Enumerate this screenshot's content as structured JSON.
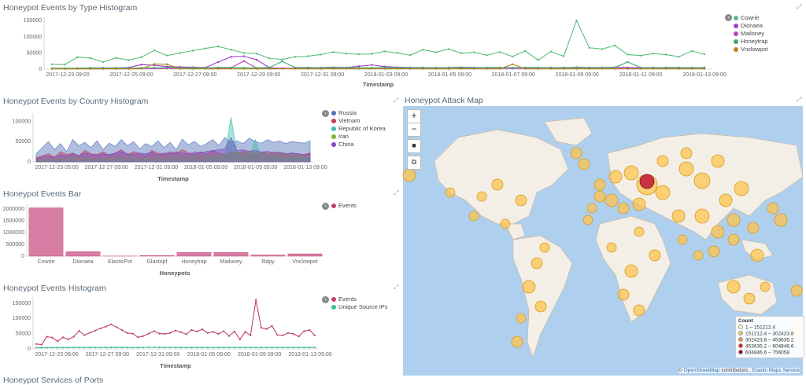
{
  "type_panel": {
    "title": "Honeypot Events by Type Histogram",
    "xlabel": "Timestamp",
    "x_ticks": [
      "2017-12-23 09:00",
      "2017-12-25 09:00",
      "2017-12-27 09:00",
      "2017-12-29 09:00",
      "2017-12-31 09:00",
      "2018-01-03 09:00",
      "2018-01-05 09:00",
      "2018-01-07 09:00",
      "2018-01-09 09:00",
      "2018-01-11 09:00",
      "2018-01-13 09:00"
    ],
    "y_ticks": [
      "150000",
      "100000",
      "50000",
      "0"
    ],
    "legend": [
      {
        "label": "Cowrie",
        "color": "#57c17b"
      },
      {
        "label": "Dionaea",
        "color": "#9c41c8"
      },
      {
        "label": "Mailoney",
        "color": "#c23fb4"
      },
      {
        "label": "Honeytrap",
        "color": "#3aab6b"
      },
      {
        "label": "Vnclowpot",
        "color": "#b5871e"
      }
    ]
  },
  "country_panel": {
    "title": "Honeypot Events by Country Histogram",
    "xlabel": "Timestamp",
    "x_ticks": [
      "2017-12-23 09:00",
      "2017-12-27 09:00",
      "2017-12-31 09:00",
      "2018-01-05 09:00",
      "2018-01-09 09:00",
      "2018-01-13 09:00"
    ],
    "y_ticks": [
      "100000",
      "50000",
      "0"
    ],
    "legend": [
      {
        "label": "Russia",
        "color": "#4d6fb8"
      },
      {
        "label": "Vietnam",
        "color": "#c0404f"
      },
      {
        "label": "Republic of Korea",
        "color": "#3dbfa8"
      },
      {
        "label": "Iran",
        "color": "#7fb538"
      },
      {
        "label": "China",
        "color": "#7b49c2"
      }
    ]
  },
  "bar_panel": {
    "title": "Honeypot Events Bar",
    "xlabel": "Honeypots",
    "y_ticks": [
      "2000000",
      "1500000",
      "1000000",
      "500000",
      "0"
    ],
    "legend": [
      {
        "label": "Events",
        "color": "#c2406f"
      }
    ]
  },
  "events_panel": {
    "title": "Honeypot Events Histogram",
    "xlabel": "Timestamp",
    "x_ticks": [
      "2017-12-23 09:00",
      "2017-12-27 09:00",
      "2017-12-31 09:00",
      "2018-01-05 09:00",
      "2018-01-09 09:00",
      "2018-01-13 09:00"
    ],
    "y_ticks": [
      "150000",
      "100000",
      "50000",
      "0"
    ],
    "legend": [
      {
        "label": "Events",
        "color": "#c2406f"
      },
      {
        "label": "Unique Source IPs",
        "color": "#3dbf95"
      }
    ]
  },
  "next_panel": {
    "title": "Honeypot Services of Ports"
  },
  "map_panel": {
    "title": "Honeypot Attack Map",
    "controls": {
      "zoom_in": "+",
      "zoom_out": "−",
      "draw": "■",
      "fit": "⧉"
    },
    "legend_title": "Count",
    "legend": [
      {
        "label": "1 – 151212.4",
        "color": "#ffffcc"
      },
      {
        "label": "151212.4 – 302423.8",
        "color": "#fec44f"
      },
      {
        "label": "302423.8 – 453635.2",
        "color": "#fd8d3c"
      },
      {
        "label": "453635.2 – 604846.6",
        "color": "#e31a1c"
      },
      {
        "label": "604846.6 – 756058",
        "color": "#99000d"
      }
    ],
    "attribution_prefix": "©",
    "attribution_osm": "OpenStreetMap",
    "attribution_mid": "contributors ,",
    "attribution_service": "Elastic Maps Service"
  },
  "chart_data": [
    {
      "type": "line",
      "title": "Honeypot Events by Type Histogram",
      "xlabel": "Timestamp",
      "ylim": [
        0,
        160000
      ],
      "series": [
        {
          "name": "Cowrie",
          "values": [
            15000,
            14000,
            37000,
            34000,
            22000,
            35000,
            28000,
            37000,
            58000,
            42000,
            50000,
            57000,
            64000,
            70000,
            60000,
            50000,
            48000,
            33000,
            30000,
            38000,
            40000,
            45000,
            53000,
            48000,
            46000,
            47000,
            55000,
            50000,
            43000,
            60000,
            52000,
            62000,
            49000,
            52000,
            43000,
            53000,
            39000,
            56000,
            28000,
            54000,
            40000,
            150000,
            66000,
            62000,
            73000,
            45000,
            42000,
            48000,
            45000,
            38000,
            56000,
            46000
          ]
        },
        {
          "name": "Dionaea",
          "values": [
            2000,
            2000,
            3000,
            3000,
            4000,
            3000,
            5000,
            14000,
            12000,
            8000,
            7000,
            6000,
            5000,
            22000,
            38000,
            40000,
            29000,
            4000,
            3000,
            3000,
            3000,
            5000,
            6000,
            5000,
            9000,
            13000,
            8000,
            6000,
            5000,
            5000,
            4000,
            5000,
            6000,
            5000,
            4000,
            5000,
            4000,
            5000,
            4000,
            5000,
            4000,
            6000,
            5000,
            5000,
            6000,
            5000,
            4000,
            5000,
            4000,
            5000,
            4000,
            5000
          ]
        },
        {
          "name": "Mailoney",
          "values": [
            1000,
            1000,
            1000,
            1000,
            1000,
            1000,
            1000,
            2000,
            2000,
            2000,
            2000,
            2000,
            2000,
            3000,
            4000,
            25000,
            3000,
            2000,
            2000,
            2000,
            2000,
            2000,
            2000,
            2000,
            2000,
            2000,
            2000,
            2000,
            2000,
            2000,
            2000,
            2000,
            2000,
            2000,
            2000,
            2000,
            2000,
            2000,
            2000,
            2000,
            2000,
            2000,
            2000,
            2000,
            2000,
            2000,
            2000,
            2000,
            2000,
            2000,
            2000,
            2000
          ]
        },
        {
          "name": "Honeytrap",
          "values": [
            3000,
            3000,
            3000,
            4000,
            3000,
            4000,
            3000,
            4000,
            4000,
            5000,
            5000,
            4000,
            4000,
            5000,
            5000,
            4000,
            4000,
            5000,
            24000,
            5000,
            5000,
            4000,
            5000,
            5000,
            4000,
            4000,
            5000,
            5000,
            4000,
            5000,
            4000,
            5000,
            5000,
            4000,
            5000,
            5000,
            4000,
            5000,
            5000,
            4000,
            5000,
            5000,
            4000,
            5000,
            5000,
            22000,
            5000,
            4000,
            5000,
            5000,
            4000,
            5000
          ]
        },
        {
          "name": "Vnclowpot",
          "values": [
            1000,
            1000,
            1000,
            1000,
            1000,
            1000,
            1000,
            1000,
            16000,
            15000,
            1000,
            1000,
            1000,
            1000,
            1000,
            1000,
            1000,
            1000,
            1000,
            1000,
            1000,
            1000,
            1000,
            1000,
            1000,
            1000,
            1000,
            1000,
            1000,
            1000,
            1000,
            1000,
            1000,
            1000,
            1000,
            1000,
            15000,
            1000,
            1000,
            1000,
            1000,
            1000,
            1000,
            1000,
            1000,
            1000,
            1000,
            1000,
            1000,
            1000,
            1000,
            1000
          ]
        }
      ]
    },
    {
      "type": "area",
      "title": "Honeypot Events by Country Histogram",
      "xlabel": "Timestamp",
      "ylim": [
        0,
        120000
      ],
      "series": [
        {
          "name": "Russia",
          "values": [
            20000,
            35000,
            50000,
            30000,
            45000,
            25000,
            55000,
            40000,
            48000,
            35000,
            52000,
            30000,
            46000,
            38000,
            55000,
            40000,
            50000,
            32000,
            45000,
            38000,
            52000,
            35000,
            48000,
            30000,
            56000,
            42000,
            50000,
            38000,
            45000,
            55000,
            40000,
            60000,
            48000,
            52000,
            45000,
            58000,
            50000,
            46000,
            55000,
            48000,
            52000,
            45000,
            50000,
            48000,
            46000,
            52000
          ]
        },
        {
          "name": "Vietnam",
          "values": [
            10000,
            15000,
            20000,
            12000,
            25000,
            18000,
            22000,
            15000,
            28000,
            20000,
            18000,
            25000,
            15000,
            22000,
            30000,
            18000,
            25000,
            20000,
            15000,
            28000,
            22000,
            18000,
            25000,
            20000,
            30000,
            22000,
            18000,
            25000,
            20000,
            28000,
            22000,
            18000,
            24000,
            20000,
            26000,
            22000,
            18000,
            25000,
            20000,
            24000,
            22000,
            18000,
            22000,
            20000,
            18000,
            22000
          ]
        },
        {
          "name": "Republic of Korea",
          "values": [
            2000,
            3000,
            2000,
            4000,
            3000,
            2000,
            3000,
            4000,
            3000,
            2000,
            3000,
            4000,
            2000,
            3000,
            4000,
            3000,
            2000,
            3000,
            4000,
            3000,
            2000,
            3000,
            4000,
            3000,
            2000,
            3000,
            4000,
            3000,
            5000,
            10000,
            8000,
            15000,
            110000,
            20000,
            12000,
            10000,
            55000,
            8000,
            10000,
            12000,
            8000,
            10000,
            9000,
            8000,
            10000,
            9000
          ]
        },
        {
          "name": "Iran",
          "values": [
            3000,
            5000,
            8000,
            6000,
            10000,
            8000,
            12000,
            9000,
            11000,
            7000,
            10000,
            8000,
            12000,
            9000,
            14000,
            10000,
            12000,
            8000,
            10000,
            9000,
            12000,
            10000,
            14000,
            11000,
            16000,
            12000,
            15000,
            13000,
            18000,
            15000,
            20000,
            18000,
            22000,
            25000,
            20000,
            28000,
            22000,
            25000,
            20000,
            22000,
            18000,
            20000,
            18000,
            16000,
            15000,
            14000
          ]
        },
        {
          "name": "China",
          "values": [
            8000,
            12000,
            15000,
            10000,
            18000,
            14000,
            20000,
            16000,
            22000,
            18000,
            16000,
            20000,
            18000,
            22000,
            25000,
            20000,
            18000,
            22000,
            20000,
            24000,
            18000,
            22000,
            20000,
            25000,
            22000,
            20000,
            24000,
            22000,
            26000,
            28000,
            30000,
            32000,
            60000,
            28000,
            30000,
            26000,
            28000,
            24000,
            26000,
            22000,
            24000,
            20000,
            22000,
            20000,
            18000,
            20000
          ]
        }
      ]
    },
    {
      "type": "bar",
      "title": "Honeypot Events Bar",
      "xlabel": "Honeypots",
      "ylim": [
        0,
        2200000
      ],
      "categories": [
        "Cowrie",
        "Dionaea",
        "ElasticPot",
        "Glastopf",
        "Honeytrap",
        "Mailoney",
        "Rdpy",
        "Vnclowpot"
      ],
      "series": [
        {
          "name": "Events",
          "values": [
            2050000,
            190000,
            5000,
            30000,
            160000,
            160000,
            50000,
            100000
          ]
        }
      ]
    },
    {
      "type": "line",
      "title": "Honeypot Events Histogram",
      "xlabel": "Timestamp",
      "ylim": [
        0,
        170000
      ],
      "series": [
        {
          "name": "Events",
          "values": [
            16000,
            14000,
            40000,
            37000,
            25000,
            38000,
            31000,
            40000,
            59000,
            45000,
            53000,
            60000,
            67000,
            73000,
            80000,
            71000,
            62000,
            52000,
            50000,
            38000,
            42000,
            50000,
            58000,
            50000,
            49000,
            52000,
            60000,
            55000,
            48000,
            62000,
            57000,
            64000,
            52000,
            56000,
            49000,
            58000,
            42000,
            57000,
            31000,
            56000,
            44000,
            160000,
            69000,
            65000,
            75000,
            46000,
            44000,
            52000,
            49000,
            41000,
            58000,
            62000,
            44000
          ]
        },
        {
          "name": "Unique Source IPs",
          "values": [
            4000,
            4000,
            4000,
            4200,
            4300,
            4200,
            4300,
            4400,
            4300,
            4500,
            4400,
            4600,
            4500,
            4700,
            4600,
            4800,
            4600,
            4500,
            4400,
            4500,
            4600,
            5500,
            5400,
            4800,
            4700,
            4800,
            4600,
            4700,
            4500,
            4600,
            4800,
            4700,
            4600,
            4500,
            4700,
            4600,
            4500,
            4600,
            4700,
            4500,
            4600,
            4700,
            4500,
            4600,
            4700,
            4500,
            4600,
            4700,
            4600,
            4500,
            4600,
            4700,
            4600
          ]
        }
      ]
    }
  ]
}
